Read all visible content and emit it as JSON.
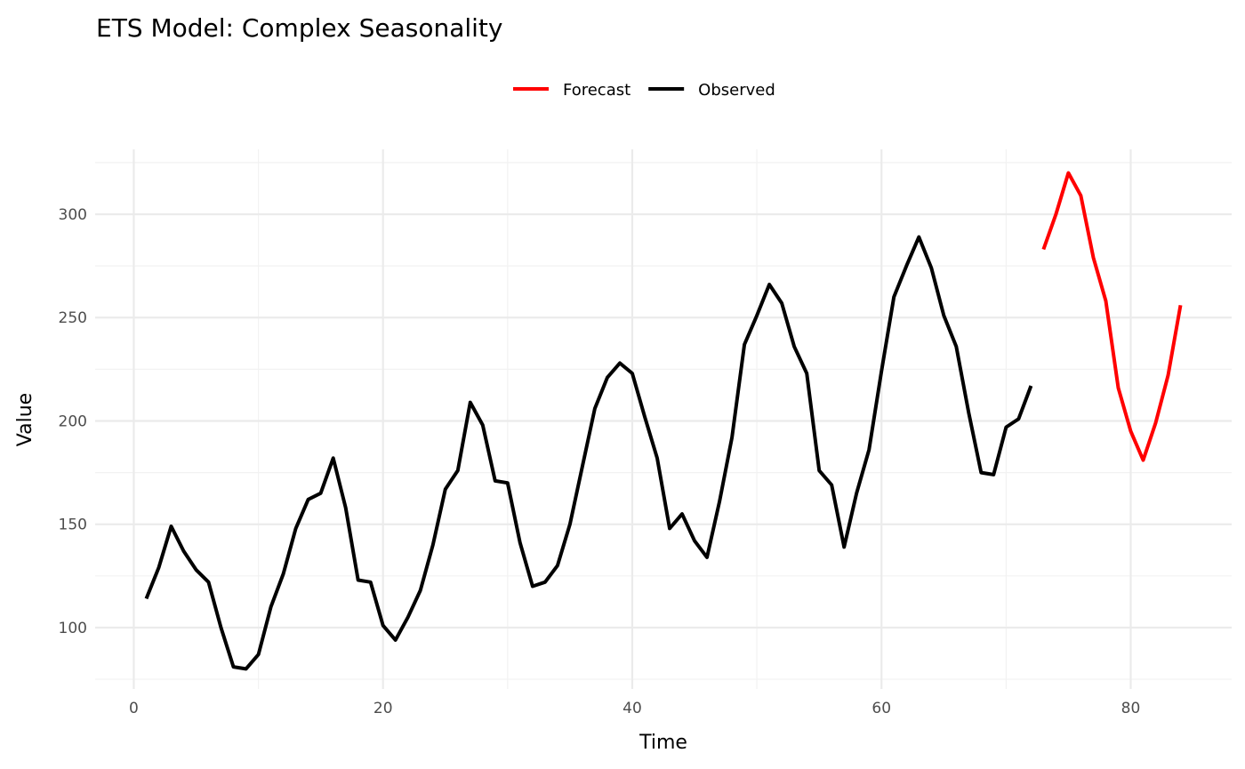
{
  "chart_data": {
    "type": "line",
    "title": "ETS Model: Complex Seasonality",
    "xlabel": "Time",
    "ylabel": "Value",
    "xlim": [
      -3.1,
      88.1
    ],
    "ylim": [
      70.3,
      331.4
    ],
    "x_ticks": [
      0,
      20,
      40,
      60,
      80
    ],
    "y_ticks": [
      100,
      150,
      200,
      250,
      300
    ],
    "grid": true,
    "legend_position": "top",
    "series": [
      {
        "name": "Forecast",
        "color": "#ff0000",
        "x": [
          73,
          74,
          75,
          76,
          77,
          78,
          79,
          80,
          81,
          82,
          83,
          84
        ],
        "values": [
          283,
          300,
          320,
          309,
          279,
          258,
          216,
          195,
          181,
          199,
          222,
          256
        ]
      },
      {
        "name": "Observed",
        "color": "#000000",
        "x": [
          1,
          2,
          3,
          4,
          5,
          6,
          7,
          8,
          9,
          10,
          11,
          12,
          13,
          14,
          15,
          16,
          17,
          18,
          19,
          20,
          21,
          22,
          23,
          24,
          25,
          26,
          27,
          28,
          29,
          30,
          31,
          32,
          33,
          34,
          35,
          36,
          37,
          38,
          39,
          40,
          41,
          42,
          43,
          44,
          45,
          46,
          47,
          48,
          49,
          50,
          51,
          52,
          53,
          54,
          55,
          56,
          57,
          58,
          59,
          60,
          61,
          62,
          63,
          64,
          65,
          66,
          67,
          68,
          69,
          70,
          71,
          72
        ],
        "values": [
          114,
          129,
          149,
          137,
          128,
          122,
          100,
          81,
          80,
          87,
          110,
          126,
          148,
          162,
          165,
          182,
          158,
          123,
          122,
          101,
          94,
          105,
          118,
          140,
          167,
          176,
          209,
          198,
          171,
          170,
          141,
          120,
          122,
          130,
          150,
          178,
          206,
          221,
          228,
          223,
          202,
          182,
          148,
          155,
          142,
          134,
          161,
          192,
          237,
          251,
          266,
          257,
          236,
          223,
          176,
          169,
          139,
          165,
          186,
          224,
          260,
          275,
          289,
          274,
          251,
          236,
          204,
          175,
          174,
          197,
          201,
          217
        ]
      }
    ]
  }
}
